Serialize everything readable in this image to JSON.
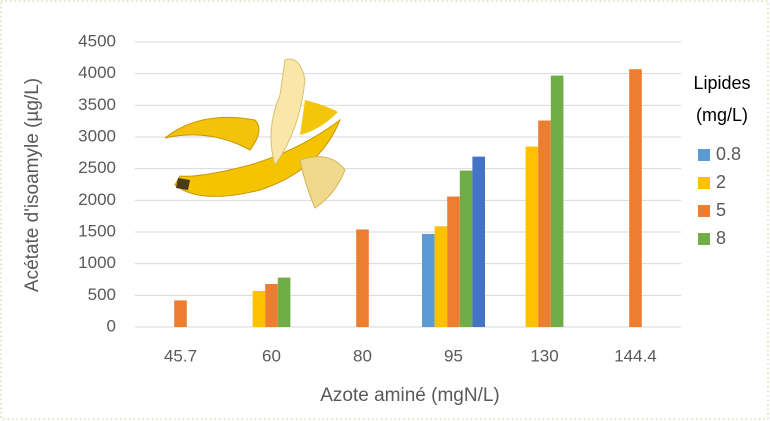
{
  "chart_data": {
    "type": "bar",
    "categories": [
      "45.7",
      "60",
      "80",
      "95",
      "130",
      "144.4"
    ],
    "series": [
      {
        "name": "0.8",
        "color": "#5b9bd5",
        "values": [
          null,
          null,
          null,
          1470,
          null,
          null
        ]
      },
      {
        "name": "2",
        "color": "#ffc000",
        "values": [
          null,
          570,
          null,
          1590,
          2850,
          null
        ]
      },
      {
        "name": "5",
        "color": "#ed7d31",
        "values": [
          420,
          680,
          1540,
          2060,
          3260,
          4070
        ]
      },
      {
        "name": "8",
        "color": "#70ad47",
        "values": [
          null,
          780,
          null,
          2470,
          3970,
          null
        ]
      },
      {
        "color": "#4472c4",
        "values": [
          null,
          null,
          null,
          2690,
          null,
          null
        ]
      }
    ],
    "ylim": [
      0,
      4500
    ],
    "yticks": [
      0,
      500,
      1000,
      1500,
      2000,
      2500,
      3000,
      3500,
      4000,
      4500
    ],
    "grid": true,
    "y_label": "Acétate d'isoamyle (µg/L)",
    "x_label": "Azote aminé (mgN/L)",
    "legend_title": [
      "Lipides",
      "(mg/L)"
    ],
    "legend_position": "right"
  }
}
